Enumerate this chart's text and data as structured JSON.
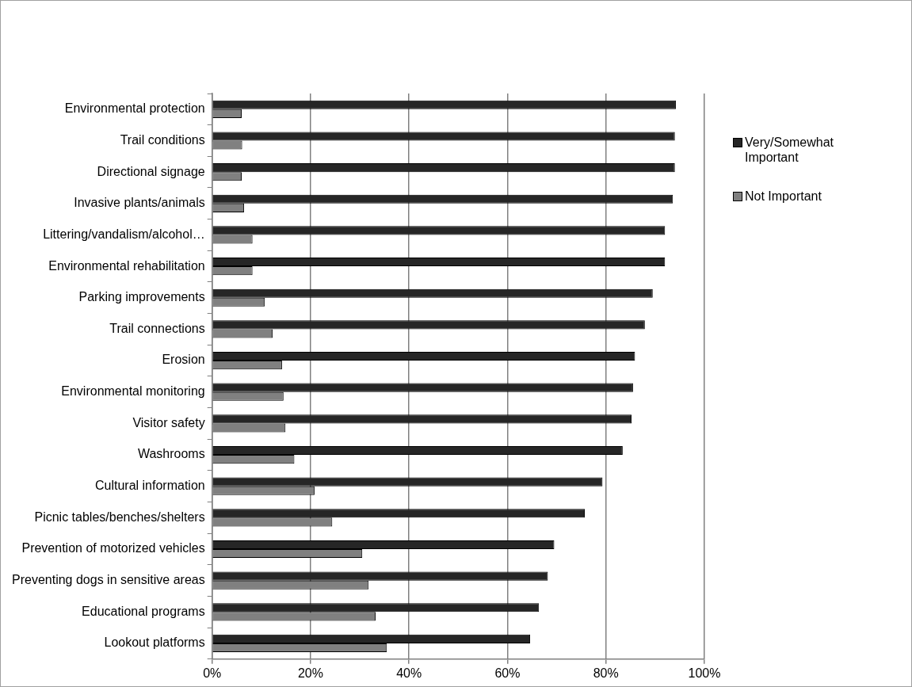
{
  "chart_data": {
    "type": "bar",
    "orientation": "horizontal",
    "categories": [
      "Environmental protection",
      "Trail conditions",
      "Directional signage",
      "Invasive plants/animals",
      "Littering/vandalism/alcohol…",
      "Environmental rehabilitation",
      "Parking improvements",
      "Trail connections",
      "Erosion",
      "Environmental monitoring",
      "Visitor safety",
      "Washrooms",
      "Cultural information",
      "Picnic tables/benches/shelters",
      "Prevention of motorized vehicles",
      "Preventing dogs in sensitive areas",
      "Educational programs",
      "Lookout platforms"
    ],
    "series": [
      {
        "name": "Very/Somewhat Important",
        "color": "#262626",
        "values": [
          94.2,
          94.0,
          94.0,
          93.6,
          92.0,
          92.0,
          89.5,
          87.9,
          85.9,
          85.5,
          85.2,
          83.4,
          79.3,
          75.7,
          69.5,
          68.2,
          66.4,
          64.6
        ]
      },
      {
        "name": "Not Important",
        "color": "#808080",
        "values": [
          6.0,
          6.1,
          6.0,
          6.5,
          8.2,
          8.2,
          10.7,
          12.3,
          14.2,
          14.5,
          14.9,
          16.7,
          20.8,
          24.4,
          30.5,
          31.8,
          33.2,
          35.5
        ]
      }
    ],
    "xlim": [
      0,
      100
    ],
    "xticks": [
      {
        "value": 0,
        "label": "0%"
      },
      {
        "value": 20,
        "label": "20%"
      },
      {
        "value": 40,
        "label": "40%"
      },
      {
        "value": 60,
        "label": "60%"
      },
      {
        "value": 80,
        "label": "80%"
      },
      {
        "value": 100,
        "label": "100%"
      }
    ],
    "grid": "x",
    "legend": "right"
  }
}
